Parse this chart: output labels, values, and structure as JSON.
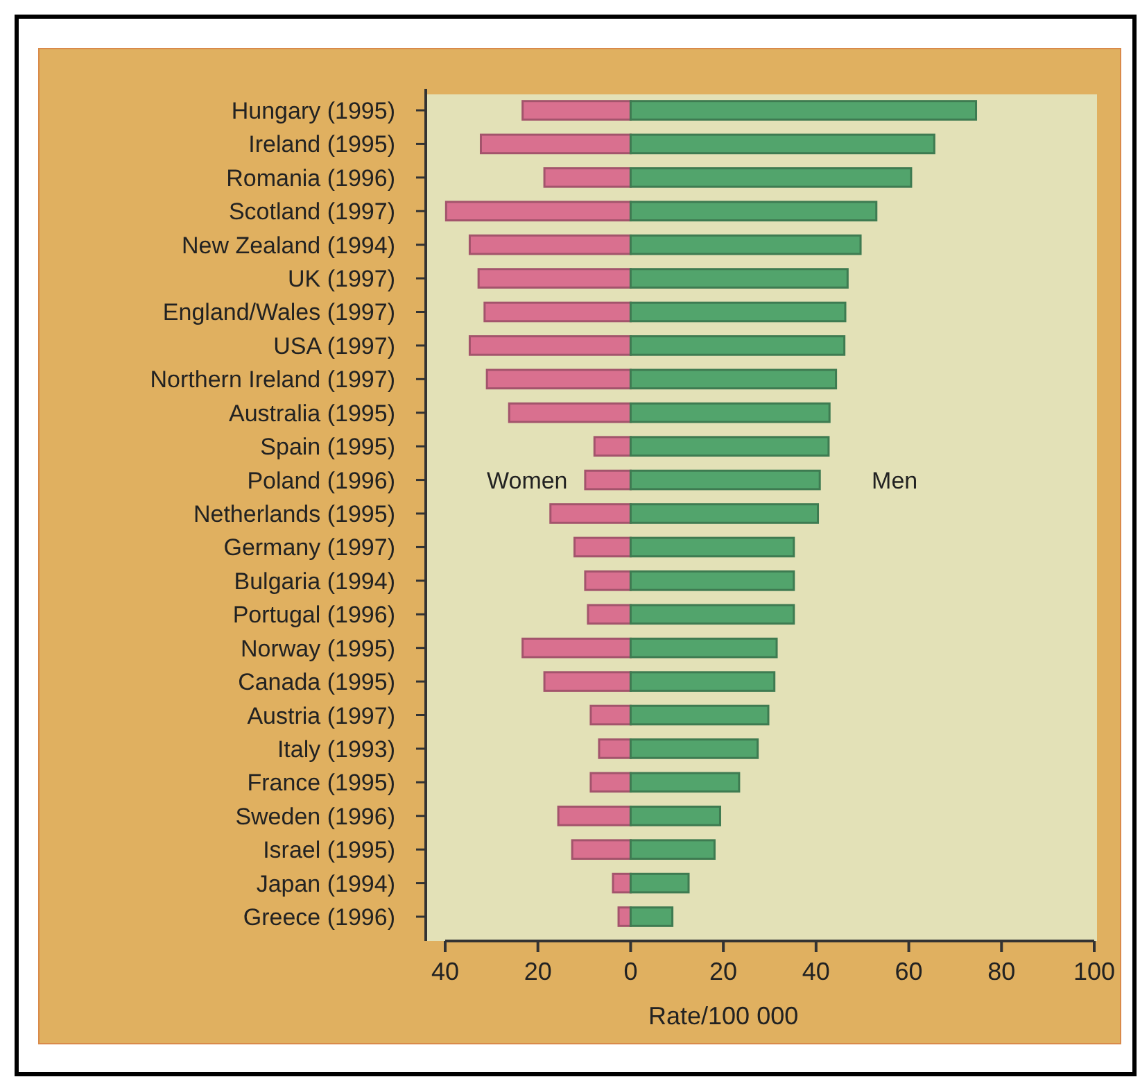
{
  "chart_data": {
    "type": "bar",
    "orientation": "horizontal",
    "stacked": true,
    "xlabel": "Rate/100 000",
    "categories": [
      "Hungary (1995)",
      "Ireland (1995)",
      "Romania (1996)",
      "Scotland (1997)",
      "New Zealand (1994)",
      "UK (1997)",
      "England/Wales (1997)",
      "USA (1997)",
      "Northern Ireland (1997)",
      "Australia (1995)",
      "Spain (1995)",
      "Poland (1996)",
      "Netherlands (1995)",
      "Germany (1997)",
      "Bulgaria (1994)",
      "Portugal (1996)",
      "Norway (1995)",
      "Canada (1995)",
      "Austria (1997)",
      "Italy (1993)",
      "France (1995)",
      "Sweden (1996)",
      "Israel (1995)",
      "Japan (1994)",
      "Greece (1996)"
    ],
    "series": [
      {
        "name": "Women",
        "color": "#d9708f",
        "values": [
          -23.3,
          -32.3,
          -18.6,
          -39.8,
          -34.7,
          -32.8,
          -31.5,
          -34.7,
          -31,
          -26.2,
          -7.8,
          -9.8,
          -17.3,
          -12.1,
          -9.8,
          -9.2,
          -23.3,
          -18.6,
          -8.6,
          -6.8,
          -8.6,
          -15.6,
          -12.6,
          -3.8,
          -2.6
        ]
      },
      {
        "name": "Men",
        "color": "#52a46c",
        "values": [
          74.5,
          65.5,
          60.5,
          53,
          49.6,
          46.8,
          46.3,
          46.1,
          44.3,
          42.9,
          42.7,
          40.8,
          40.4,
          35.2,
          35.2,
          35.2,
          31.5,
          31,
          29.7,
          27.4,
          23.4,
          19.3,
          18.1,
          12.5,
          9
        ]
      }
    ],
    "xlim": [
      -40,
      100
    ],
    "xticks": [
      {
        "value": -40,
        "label": "40"
      },
      {
        "value": -20,
        "label": "20"
      },
      0,
      20,
      40,
      60,
      80,
      100
    ],
    "grid": false
  }
}
